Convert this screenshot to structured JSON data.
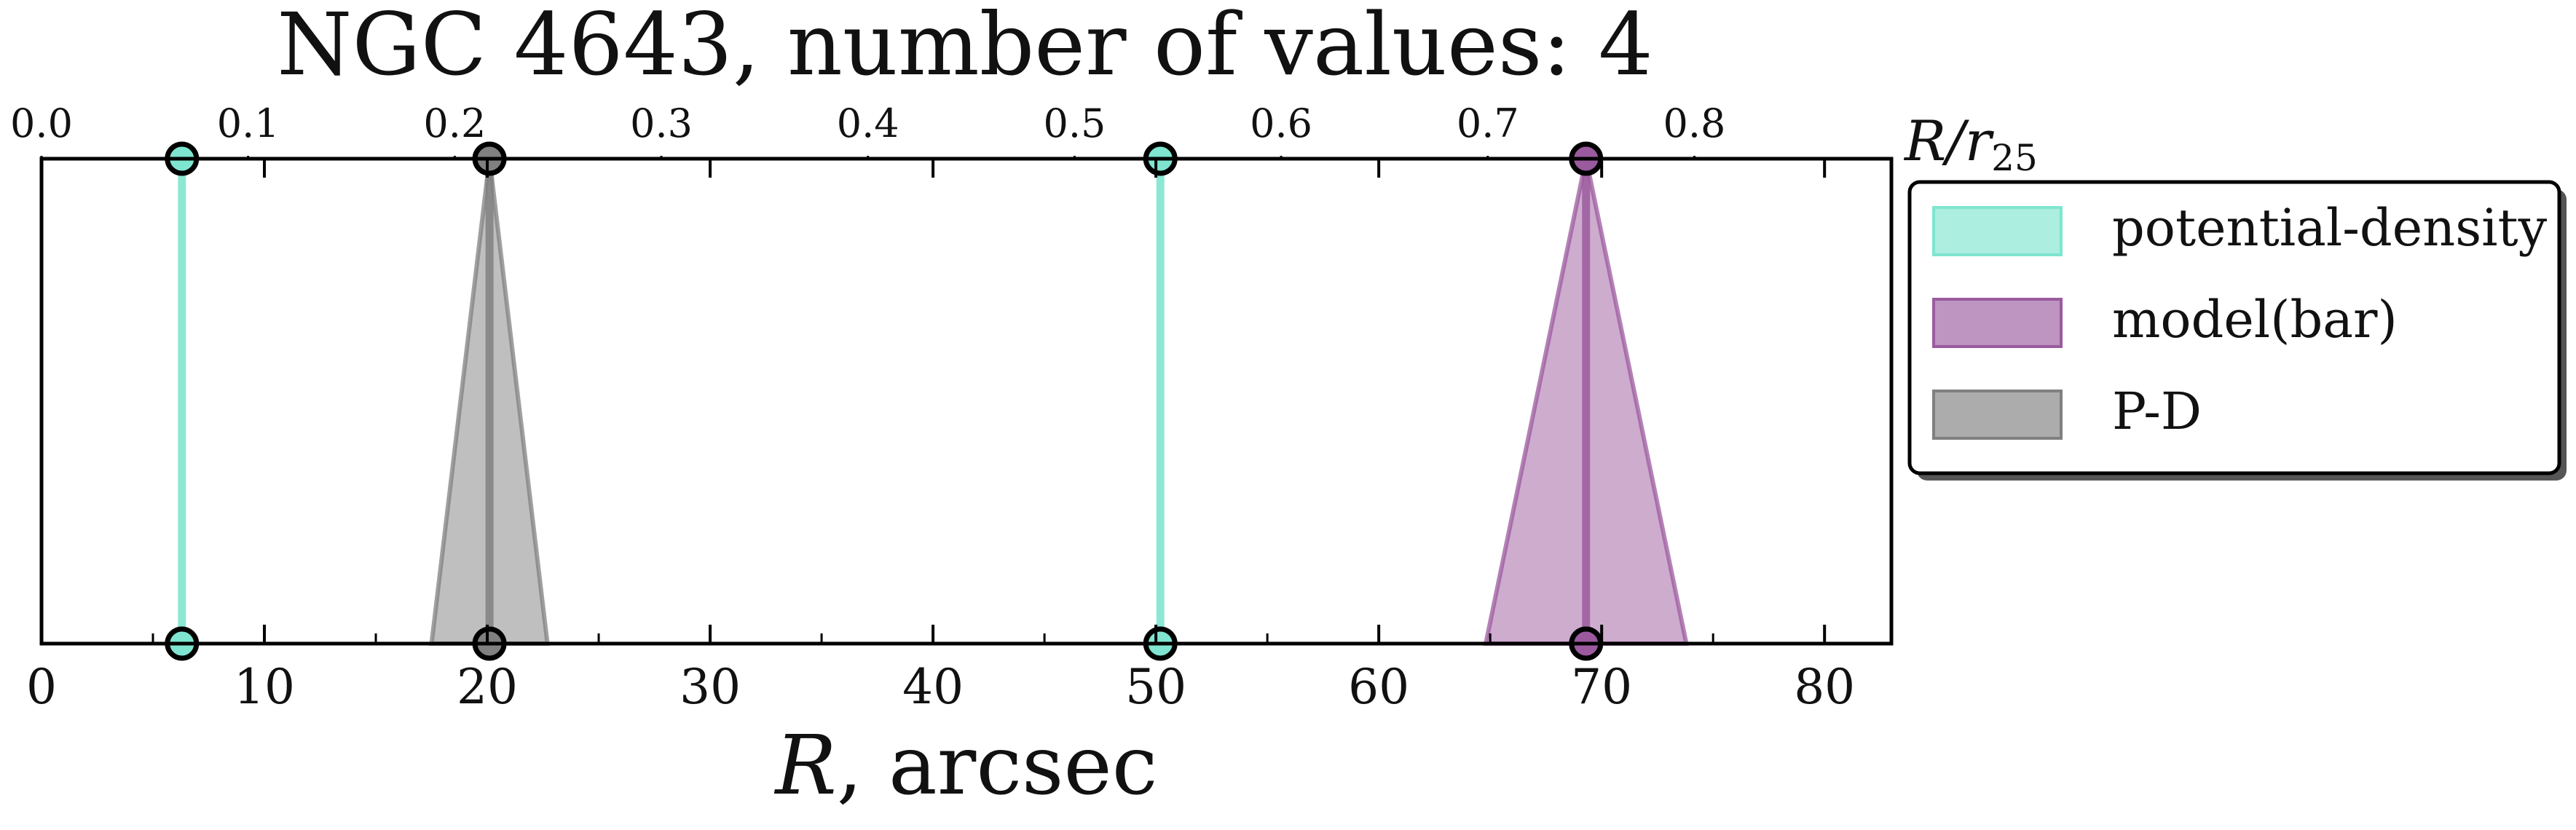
{
  "chart_data": {
    "type": "area",
    "title": "NGC 4643, number of values: 4",
    "xlabel_main": "R",
    "xlabel_unit": ", arcsec",
    "x2label_main": "R/r",
    "x2label_sub": "25",
    "xlim": [
      0,
      83
    ],
    "x_ticks": [
      "0",
      "10",
      "20",
      "30",
      "40",
      "50",
      "60",
      "70",
      "80"
    ],
    "x2_ticks": [
      "0.0",
      "0.1",
      "0.2",
      "0.3",
      "0.4",
      "0.5",
      "0.6",
      "0.7",
      "0.8"
    ],
    "r25_arcsec": 92.7,
    "grid": false,
    "legend_position": "right",
    "series": [
      {
        "name": "potential-density",
        "color": "#7fe5d0",
        "values": [
          {
            "x": 6.3,
            "err": 0
          },
          {
            "x": 50.2,
            "err": 0
          }
        ]
      },
      {
        "name": "model(bar)",
        "color": "#9b5a9e",
        "values": [
          {
            "x": 69.3,
            "err": 4.5
          }
        ]
      },
      {
        "name": "P-D",
        "color": "#808080",
        "values": [
          {
            "x": 20.1,
            "err": 2.6
          }
        ]
      }
    ]
  }
}
